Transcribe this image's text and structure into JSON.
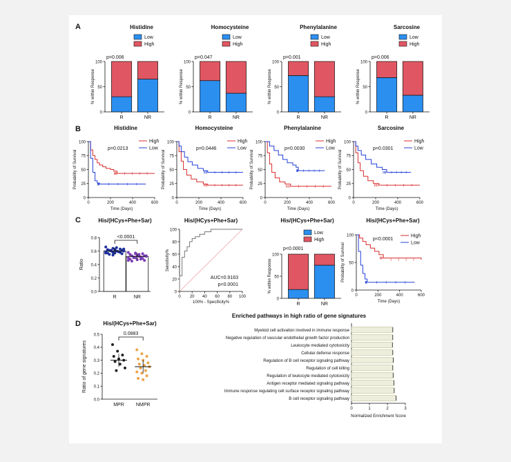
{
  "colors": {
    "low": "#2b8ff0",
    "high": "#e05763",
    "red_line": "#d92b2b",
    "blue_line": "#2340d8",
    "roc": "#777777",
    "ref": "#f2b8bc",
    "mpr": "#222222",
    "nmpr": "#eda44a",
    "bar_fill": "#eeeedd"
  },
  "panels": {
    "A": "A",
    "B": "B",
    "C": "C",
    "D": "D"
  },
  "legend": {
    "low": "Low",
    "high": "High"
  },
  "chart_data": [
    {
      "panel": "A",
      "type": "bar",
      "subtype": "stacked-percent",
      "title": "Histidine",
      "ylabel": "% within Response",
      "categories": [
        "R",
        "NR"
      ],
      "series": [
        {
          "name": "Low",
          "values": [
            30,
            65
          ]
        },
        {
          "name": "High",
          "values": [
            70,
            35
          ]
        }
      ],
      "ylim": [
        0,
        100
      ],
      "yticks": [
        "0",
        "50",
        "100"
      ],
      "annotation": "p=0.006"
    },
    {
      "panel": "A",
      "type": "bar",
      "subtype": "stacked-percent",
      "title": "Homocysteine",
      "ylabel": "% within Response",
      "categories": [
        "R",
        "NR"
      ],
      "series": [
        {
          "name": "Low",
          "values": [
            62,
            37
          ]
        },
        {
          "name": "High",
          "values": [
            38,
            63
          ]
        }
      ],
      "ylim": [
        0,
        100
      ],
      "yticks": [
        "0",
        "50",
        "100"
      ],
      "annotation": "p=0.047"
    },
    {
      "panel": "A",
      "type": "bar",
      "subtype": "stacked-percent",
      "title": "Phenylalanine",
      "ylabel": "% within Response",
      "categories": [
        "R",
        "NR"
      ],
      "series": [
        {
          "name": "Low",
          "values": [
            72,
            30
          ]
        },
        {
          "name": "High",
          "values": [
            28,
            70
          ]
        }
      ],
      "ylim": [
        0,
        100
      ],
      "yticks": [
        "0",
        "50",
        "100"
      ],
      "annotation": "p=0.001"
    },
    {
      "panel": "A",
      "type": "bar",
      "subtype": "stacked-percent",
      "title": "Sarcosine",
      "ylabel": "% within Response",
      "categories": [
        "R",
        "NR"
      ],
      "series": [
        {
          "name": "Low",
          "values": [
            68,
            33
          ]
        },
        {
          "name": "High",
          "values": [
            32,
            67
          ]
        }
      ],
      "ylim": [
        0,
        100
      ],
      "yticks": [
        "0",
        "50",
        "100"
      ],
      "annotation": "p=0.006"
    },
    {
      "panel": "B",
      "type": "line",
      "subtype": "kaplan-meier",
      "title": "Histidine",
      "xlabel": "Time (Days)",
      "ylabel": "Probability of Survival",
      "xlim": [
        0,
        600
      ],
      "ylim": [
        0,
        100
      ],
      "xticks": [
        "0",
        "200",
        "400",
        "600"
      ],
      "yticks": [
        "0",
        "25",
        "50",
        "75",
        "100"
      ],
      "annotation": "p=0.0213",
      "series": [
        {
          "name": "High",
          "x": [
            0,
            20,
            40,
            60,
            80,
            100,
            130,
            160,
            200,
            230,
            260,
            600
          ],
          "y": [
            100,
            85,
            75,
            68,
            62,
            58,
            55,
            52,
            50,
            47,
            43,
            43
          ]
        },
        {
          "name": "Low",
          "x": [
            0,
            20,
            40,
            60,
            80,
            100,
            520
          ],
          "y": [
            100,
            70,
            45,
            30,
            26,
            24,
            24
          ]
        }
      ]
    },
    {
      "panel": "B",
      "type": "line",
      "subtype": "kaplan-meier",
      "title": "Homocysteine",
      "xlabel": "Time (Days)",
      "ylabel": "Probability of Survival",
      "xlim": [
        0,
        600
      ],
      "ylim": [
        0,
        100
      ],
      "xticks": [
        "0",
        "200",
        "400",
        "600"
      ],
      "yticks": [
        "0",
        "25",
        "50",
        "75",
        "100"
      ],
      "annotation": "p=0.0446",
      "series": [
        {
          "name": "High",
          "x": [
            0,
            20,
            40,
            60,
            90,
            130,
            180,
            240,
            280,
            600
          ],
          "y": [
            100,
            82,
            65,
            50,
            40,
            33,
            28,
            24,
            22,
            22
          ]
        },
        {
          "name": "Low",
          "x": [
            0,
            20,
            40,
            70,
            100,
            140,
            190,
            240,
            280,
            600
          ],
          "y": [
            100,
            92,
            82,
            72,
            64,
            58,
            52,
            48,
            45,
            45
          ]
        }
      ]
    },
    {
      "panel": "B",
      "type": "line",
      "subtype": "kaplan-meier",
      "title": "Phenylalanine",
      "xlabel": "Time (Days)",
      "ylabel": "Probability of Survival",
      "xlim": [
        0,
        600
      ],
      "ylim": [
        0,
        100
      ],
      "xticks": [
        "0",
        "200",
        "400",
        "600"
      ],
      "yticks": [
        "0",
        "25",
        "50",
        "75",
        "100"
      ],
      "annotation": "p=0.0030",
      "series": [
        {
          "name": "High",
          "x": [
            0,
            20,
            40,
            60,
            90,
            130,
            180,
            230,
            600
          ],
          "y": [
            100,
            80,
            60,
            45,
            35,
            28,
            24,
            20,
            20
          ]
        },
        {
          "name": "Low",
          "x": [
            0,
            40,
            80,
            120,
            160,
            200,
            250,
            280,
            300,
            540
          ],
          "y": [
            100,
            92,
            84,
            76,
            68,
            62,
            58,
            54,
            48,
            48
          ]
        }
      ]
    },
    {
      "panel": "B",
      "type": "line",
      "subtype": "kaplan-meier",
      "title": "Sarcosine",
      "xlabel": "Time (Days)",
      "ylabel": "Probability of Survival",
      "xlim": [
        0,
        600
      ],
      "ylim": [
        0,
        100
      ],
      "xticks": [
        "0",
        "200",
        "400",
        "600"
      ],
      "yticks": [
        "0",
        "25",
        "50",
        "75",
        "100"
      ],
      "annotation": "p=0.0301",
      "series": [
        {
          "name": "High",
          "x": [
            0,
            20,
            40,
            60,
            90,
            130,
            180,
            230,
            600
          ],
          "y": [
            100,
            80,
            62,
            48,
            38,
            30,
            25,
            22,
            22
          ]
        },
        {
          "name": "Low",
          "x": [
            0,
            20,
            40,
            70,
            110,
            160,
            210,
            260,
            300,
            520
          ],
          "y": [
            100,
            92,
            84,
            76,
            68,
            60,
            54,
            50,
            45,
            45
          ]
        }
      ]
    },
    {
      "panel": "C",
      "type": "scatter",
      "subtype": "bar-dot",
      "title": "His/(HCys+Phe+Sar)",
      "ylabel": "Ratio",
      "categories": [
        "R",
        "NR"
      ],
      "ylim": [
        0,
        0.8
      ],
      "yticks": [
        "0.0",
        "0.2",
        "0.4",
        "0.6",
        "0.8"
      ],
      "means": [
        0.6,
        0.52
      ],
      "annotation": "<0.0001",
      "points": [
        [
          0.66,
          0.64,
          0.63,
          0.62,
          0.62,
          0.61,
          0.61,
          0.6,
          0.6,
          0.6,
          0.59,
          0.59,
          0.58,
          0.58,
          0.57,
          0.57,
          0.56,
          0.55,
          0.65,
          0.63,
          0.61,
          0.59,
          0.57,
          0.54
        ],
        [
          0.58,
          0.57,
          0.56,
          0.55,
          0.54,
          0.53,
          0.53,
          0.52,
          0.52,
          0.51,
          0.51,
          0.5,
          0.5,
          0.49,
          0.48,
          0.47,
          0.46,
          0.45,
          0.55,
          0.53,
          0.5,
          0.48,
          0.46,
          0.56
        ]
      ]
    },
    {
      "panel": "C",
      "type": "line",
      "subtype": "roc",
      "title": "His/(HCys+Phe+Sar)",
      "xlabel": "100% - Specificity%",
      "ylabel": "Sensitivity%",
      "xlim": [
        0,
        100
      ],
      "ylim": [
        0,
        100
      ],
      "xticks": [
        "0",
        "20",
        "40",
        "60",
        "80",
        "100"
      ],
      "yticks": [
        "0",
        "20",
        "40",
        "60",
        "80",
        "100"
      ],
      "annotation": [
        "AUC=0.9163",
        "p<0.0001"
      ],
      "series": [
        {
          "name": "ROC",
          "x": [
            0,
            0,
            4,
            4,
            8,
            8,
            12,
            12,
            16,
            16,
            20,
            20,
            25,
            25,
            32,
            32,
            40,
            40,
            50,
            50,
            100
          ],
          "y": [
            0,
            25,
            25,
            55,
            55,
            65,
            65,
            72,
            72,
            80,
            80,
            85,
            85,
            88,
            88,
            92,
            92,
            96,
            96,
            100,
            100
          ]
        }
      ]
    },
    {
      "panel": "C",
      "type": "bar",
      "subtype": "stacked-percent",
      "title": "",
      "ylabel": "% within Response",
      "categories": [
        "R",
        "NR"
      ],
      "series": [
        {
          "name": "Low",
          "values": [
            20,
            75
          ]
        },
        {
          "name": "High",
          "values": [
            80,
            25
          ]
        }
      ],
      "ylim": [
        0,
        100
      ],
      "yticks": [
        "0",
        "50",
        "100"
      ],
      "annotation": "p<0.0001"
    },
    {
      "panel": "C",
      "type": "line",
      "subtype": "kaplan-meier",
      "title": "His/(HCys+Phe+Sar)",
      "xlabel": "Time (Days)",
      "ylabel": "Probability of Survival",
      "xlim": [
        0,
        600
      ],
      "ylim": [
        0,
        100
      ],
      "xticks": [
        "0",
        "200",
        "400",
        "600"
      ],
      "yticks": [
        "0",
        "50",
        "100"
      ],
      "annotation": "p<0.0001",
      "series": [
        {
          "name": "High",
          "x": [
            0,
            30,
            60,
            90,
            130,
            170,
            210,
            250,
            600
          ],
          "y": [
            100,
            94,
            88,
            82,
            76,
            70,
            64,
            58,
            55
          ]
        },
        {
          "name": "Low",
          "x": [
            0,
            20,
            40,
            60,
            80,
            100,
            540
          ],
          "y": [
            100,
            70,
            45,
            30,
            20,
            14,
            14
          ]
        }
      ]
    },
    {
      "panel": "D",
      "type": "scatter",
      "subtype": "bar-dot",
      "title": "His/(HCys+Phe+Sar)",
      "ylabel": "Ratio of gene signatures",
      "categories": [
        "MPR",
        "NMPR"
      ],
      "ylim": [
        0,
        0.5
      ],
      "yticks": [
        "0.0",
        "0.1",
        "0.2",
        "0.3",
        "0.4",
        "0.5"
      ],
      "means": [
        0.3,
        0.25
      ],
      "annotation": "0.0883",
      "points": [
        [
          0.42,
          0.37,
          0.34,
          0.33,
          0.31,
          0.3,
          0.29,
          0.27,
          0.24,
          0.22
        ],
        [
          0.38,
          0.35,
          0.33,
          0.31,
          0.3,
          0.28,
          0.27,
          0.26,
          0.25,
          0.24,
          0.22,
          0.21,
          0.2,
          0.18,
          0.16,
          0.15
        ]
      ]
    },
    {
      "panel": "D",
      "type": "bar",
      "subtype": "horizontal",
      "title": "Enriched pathways in high ratio of gene signatures",
      "xlabel": "Normalized Enrichment Score",
      "xlim": [
        0,
        3
      ],
      "xticks": [
        "0",
        "1",
        "2",
        "3"
      ],
      "categories": [
        "Myeloid cell activation involved in immune response",
        "Negative regulation of vascular endothelial growth factor production",
        "Leukocyte mediated cytotoxicity",
        "Cellular defense response",
        "Regulation of B cell receptor signaling pathway",
        "Regulation of cell killing",
        "Regulation of leukocyte mediated cytotoxicity",
        "Antigen receptor mediated signaling pathway",
        "Immune response regulating cell surface receptor signaling pathway",
        "B cell receptor signaling pathway"
      ],
      "values": [
        2.3,
        2.3,
        2.28,
        2.3,
        2.33,
        2.3,
        2.32,
        2.36,
        2.38,
        2.48
      ]
    }
  ]
}
